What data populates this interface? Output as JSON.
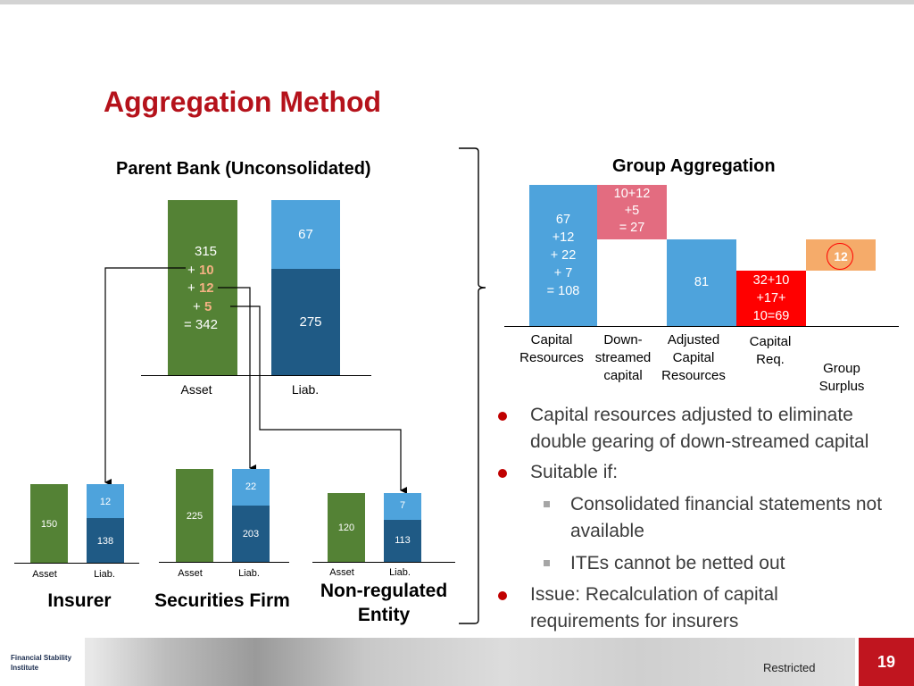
{
  "title": "Aggregation Method",
  "parent": {
    "title": "Parent Bank (Unconsolidated)",
    "asset_lines": [
      "315",
      "+ ",
      "10",
      "+ ",
      "12",
      "+ ",
      "5",
      "= 342"
    ],
    "liab_top": "67",
    "liab_bottom": "275",
    "asset_label": "Asset",
    "liab_label": "Liab."
  },
  "subsidiaries": [
    {
      "name": "Insurer",
      "asset": "150",
      "liab_top": "12",
      "liab_bottom": "138",
      "asset_label": "Asset",
      "liab_label": "Liab."
    },
    {
      "name": "Securities Firm",
      "asset": "225",
      "liab_top": "22",
      "liab_bottom": "203",
      "asset_label": "Asset",
      "liab_label": "Liab."
    },
    {
      "name": "Non-regulated Entity",
      "asset": "120",
      "liab_top": "7",
      "liab_bottom": "113",
      "asset_label": "Asset",
      "liab_label": "Liab."
    }
  ],
  "group": {
    "title": "Group Aggregation",
    "cap_res_lines": [
      "67",
      "+12",
      "+ 22",
      "+ 7",
      "= 108"
    ],
    "down_lines": [
      "10+12",
      "+5",
      "= 27"
    ],
    "adjusted": "81",
    "req_lines": [
      "32+10",
      "+17+",
      "10=69"
    ],
    "surplus": "12",
    "labels": [
      [
        "Capital",
        "Resources"
      ],
      [
        "Down-",
        "streamed",
        "capital"
      ],
      [
        "Adjusted",
        "Capital",
        "Resources"
      ],
      [
        "Capital",
        "Req."
      ],
      [
        "Group",
        "Surplus"
      ]
    ]
  },
  "bullets": [
    {
      "level": 1,
      "text": "Capital resources adjusted to eliminate double gearing of down-streamed capital"
    },
    {
      "level": 1,
      "text": "Suitable if:"
    },
    {
      "level": 2,
      "text": "Consolidated financial statements not available"
    },
    {
      "level": 2,
      "text": "ITEs cannot be netted out"
    },
    {
      "level": 1,
      "text": "Issue: Recalculation of capital requirements for insurers"
    }
  ],
  "footer": {
    "logo_line1": "Financial Stability",
    "logo_line2": "Institute",
    "restricted": "Restricted",
    "page": "19"
  },
  "colors": {
    "title_red": "#b5121b",
    "asset_green": "#548235",
    "liab_light_blue": "#4ea3dc",
    "liab_dark_blue": "#1f5a85",
    "downstreamed_pink": "#e36c80",
    "capital_req_red": "#ff0000",
    "surplus_orange": "#f5ab6a",
    "highlight_numbers": "#f4b183"
  }
}
